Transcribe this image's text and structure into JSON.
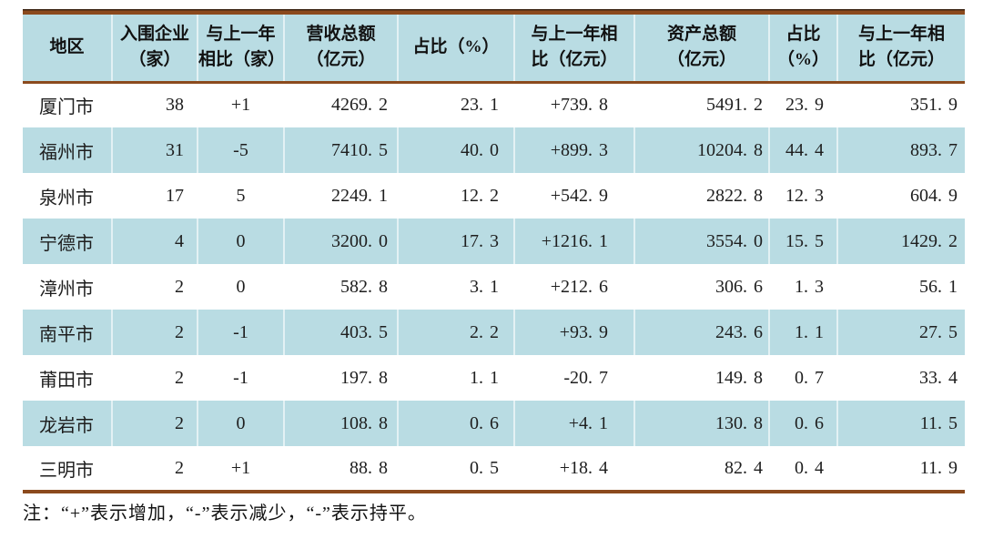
{
  "table": {
    "columns": [
      {
        "id": "region",
        "lines": [
          "地区"
        ]
      },
      {
        "id": "enterprises",
        "lines": [
          "入围企业",
          "（家）"
        ]
      },
      {
        "id": "yoy-enterprises",
        "lines": [
          "与上一年",
          "相比（家）"
        ]
      },
      {
        "id": "revenue-total",
        "lines": [
          "营收总额",
          "（亿元）"
        ]
      },
      {
        "id": "revenue-share",
        "lines": [
          "占比（%）"
        ]
      },
      {
        "id": "yoy-revenue",
        "lines": [
          "与上一年相",
          "比（亿元）"
        ]
      },
      {
        "id": "assets-total",
        "lines": [
          "资产总额",
          "（亿元）"
        ]
      },
      {
        "id": "assets-share",
        "lines": [
          "占比",
          "（%）"
        ]
      },
      {
        "id": "yoy-assets",
        "lines": [
          "与上一年相",
          "比（亿元）"
        ]
      }
    ],
    "rows": [
      [
        "厦门市",
        "38",
        "+1",
        "4269.2",
        "23.1",
        "+739.8",
        "5491.2",
        "23.9",
        "351.9"
      ],
      [
        "福州市",
        "31",
        "-5",
        "7410.5",
        "40.0",
        "+899.3",
        "10204.8",
        "44.4",
        "893.7"
      ],
      [
        "泉州市",
        "17",
        "5",
        "2249.1",
        "12.2",
        "+542.9",
        "2822.8",
        "12.3",
        "604.9"
      ],
      [
        "宁德市",
        "4",
        "0",
        "3200.0",
        "17.3",
        "+1216.1",
        "3554.0",
        "15.5",
        "1429.2"
      ],
      [
        "漳州市",
        "2",
        "0",
        "582.8",
        "3.1",
        "+212.6",
        "306.6",
        "1.3",
        "56.1"
      ],
      [
        "南平市",
        "2",
        "-1",
        "403.5",
        "2.2",
        "+93.9",
        "243.6",
        "1.1",
        "27.5"
      ],
      [
        "莆田市",
        "2",
        "-1",
        "197.8",
        "1.1",
        "-20.7",
        "149.8",
        "0.7",
        "33.4"
      ],
      [
        "龙岩市",
        "2",
        "0",
        "108.8",
        "0.6",
        "+4.1",
        "130.8",
        "0.6",
        "11.5"
      ],
      [
        "三明市",
        "2",
        "+1",
        "88.8",
        "0.5",
        "+18.4",
        "82.4",
        "0.4",
        "11.9"
      ]
    ]
  },
  "note": "注：“+”表示增加，“-”表示减少，“-”表示持平。",
  "colors": {
    "header_and_stripe_bg": "#b9dce3",
    "rule_brown": "#8b4a1d",
    "text": "#1e1e1e"
  }
}
